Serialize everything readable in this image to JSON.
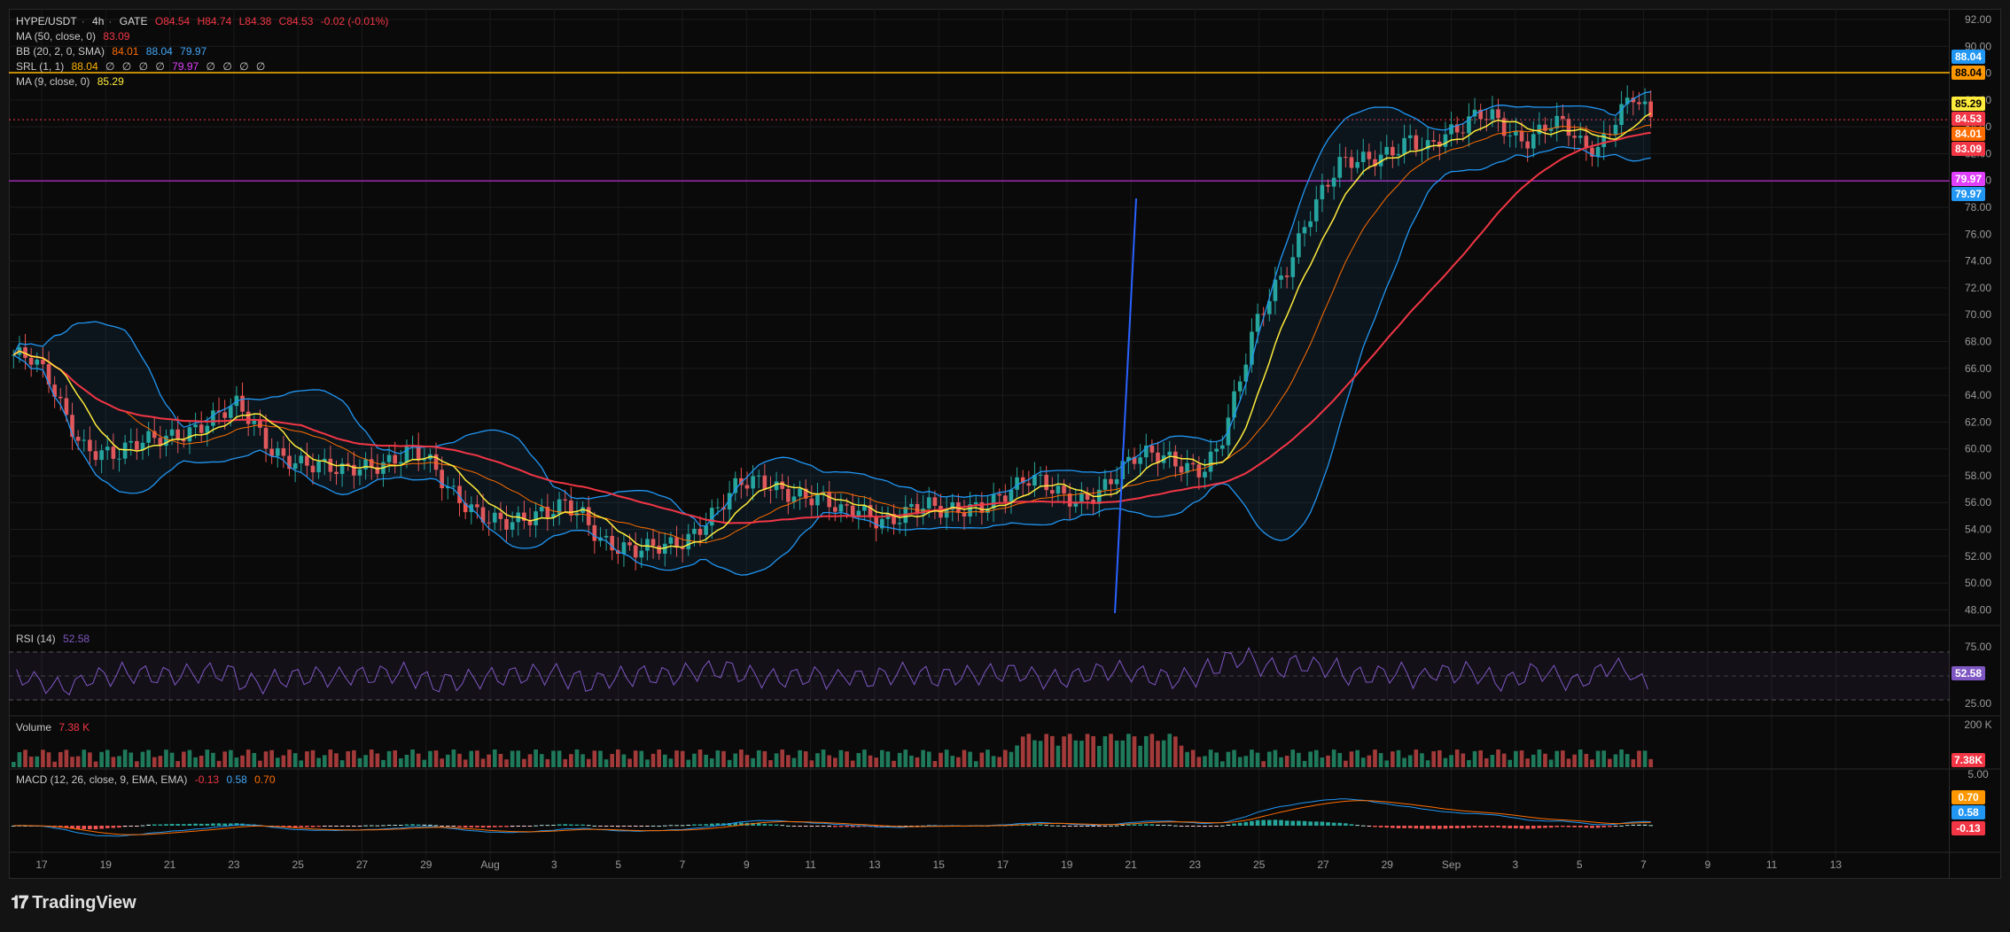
{
  "symbol_header": {
    "pair": "HYPE/USDT",
    "interval": "4h",
    "exchange": "GATE",
    "open": "O84.54",
    "high": "H84.74",
    "low": "L84.38",
    "close": "C84.53",
    "change": "-0.02 (-0.01%)"
  },
  "indicators": {
    "ma50": {
      "label": "MA (50, close, 0)",
      "value": "83.09",
      "color": "#f23645"
    },
    "bb": {
      "label": "BB (20, 2, 0, SMA)",
      "basis": "84.01",
      "upper": "88.04",
      "lower": "79.97",
      "basis_color": "#ff6d00",
      "band_color": "#2962ff"
    },
    "srl": {
      "label": "SRL (1, 1)",
      "v1": "88.04",
      "v2": "∅",
      "v3": "∅",
      "v4": "∅",
      "v5": "∅",
      "v6": "79.97",
      "v7": "∅",
      "v8": "∅",
      "v9": "∅",
      "v10": "∅"
    },
    "ma9": {
      "label": "MA (9, close, 0)",
      "value": "85.29",
      "color": "#ffeb3b"
    }
  },
  "rsi_panel": {
    "label": "RSI (14)",
    "value": "52.58",
    "levels": [
      "75.00",
      "25.00"
    ],
    "tag": "52.58",
    "color": "#7e57c2"
  },
  "volume_panel": {
    "label": "Volume",
    "value": "7.38 K",
    "scale": "200 K",
    "tag": "7.38K"
  },
  "macd_panel": {
    "label": "MACD (12, 26, close, 9, EMA, EMA)",
    "hist": "-0.13",
    "macd": "0.58",
    "signal": "0.70",
    "scale": "5.00",
    "tags": [
      "0.70",
      "0.58",
      "-0.13"
    ]
  },
  "price_axis": {
    "ticks": [
      "92.00",
      "90.00",
      "88.00",
      "86.00",
      "84.00",
      "82.00",
      "80.00",
      "78.00",
      "76.00",
      "74.00",
      "72.00",
      "70.00",
      "68.00",
      "66.00",
      "64.00",
      "62.00",
      "60.00",
      "58.00",
      "56.00",
      "54.00",
      "52.00",
      "50.00",
      "48.00"
    ],
    "tags": {
      "bb_upper_blue": "88.04",
      "srl_upper_orange": "88.04",
      "ma9": "85.29",
      "last_price": "84.53",
      "bb_basis": "84.01",
      "ma50": "83.09",
      "srl_lower_purple": "79.97",
      "bb_lower": "79.97"
    }
  },
  "time_axis": {
    "labels": [
      "17",
      "19",
      "21",
      "23",
      "25",
      "27",
      "29",
      "Aug",
      "3",
      "5",
      "7",
      "9",
      "11",
      "13",
      "15",
      "17",
      "19",
      "21",
      "23",
      "25",
      "27",
      "29",
      "Sep",
      "3",
      "5",
      "7",
      "9",
      "11",
      "13"
    ]
  },
  "branding": {
    "name": "TradingView"
  },
  "chart_data": {
    "type": "candlestick",
    "title": "HYPE/USDT · 4h · GATE",
    "ylim": [
      47,
      92.5
    ],
    "resistance_line": 88.04,
    "support_line": 79.97,
    "close_series_approx": [
      67.0,
      66.5,
      65.0,
      62.5,
      60.5,
      60.0,
      59.5,
      60.0,
      60.5,
      61.0,
      61.5,
      62.0,
      62.5,
      63.0,
      61.5,
      60.0,
      59.5,
      59.0,
      58.5,
      58.0,
      58.5,
      59.0,
      59.5,
      60.0,
      59.0,
      57.0,
      56.0,
      55.5,
      55.0,
      54.5,
      54.5,
      55.0,
      56.0,
      55.5,
      53.5,
      52.5,
      52.0,
      52.5,
      53.0,
      53.5,
      54.5,
      55.5,
      57.0,
      57.5,
      57.5,
      57.0,
      56.5,
      56.0,
      55.0,
      55.5,
      55.0,
      55.0,
      55.5,
      55.5,
      55.0,
      55.5,
      56.0,
      56.5,
      57.0,
      57.5,
      57.0,
      56.5,
      56.5,
      57.0,
      58.0,
      59.0,
      59.5,
      59.5,
      59.0,
      58.5,
      60.0,
      64.0,
      69.0,
      72.0,
      74.0,
      77.0,
      79.0,
      81.0,
      81.5,
      82.0,
      82.5,
      83.0,
      82.0,
      83.0,
      84.0,
      85.5,
      85.0,
      83.0,
      82.5,
      84.0,
      84.5,
      83.0,
      82.5,
      84.5,
      86.0,
      84.5
    ]
  }
}
